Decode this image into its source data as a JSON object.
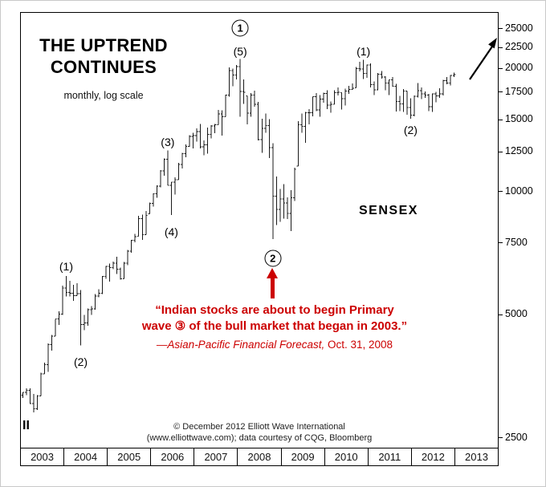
{
  "page": {
    "title_line1": "THE UPTREND",
    "title_line2": "CONTINUES",
    "subtitle": "monthly, log scale",
    "series_label": "SENSEX",
    "bottom_left_marker": "II",
    "quote_line1": "“Indian stocks are about to begin Primary",
    "quote_line2": "wave ③ of the bull market that began in 2003.”",
    "quote_attribution_italic": "—Asian-Pacific Financial Forecast,",
    "quote_attribution_rest": " Oct. 31, 2008",
    "copyright_line1": "© December 2012 Elliott Wave International",
    "copyright_line2": "(www.elliottwave.com); data courtesy of CQG, Bloomberg"
  },
  "chart_data": {
    "type": "ohlc_bar",
    "title": "THE UPTREND CONTINUES",
    "subtitle": "monthly, log scale",
    "series_name": "SENSEX",
    "scale": "log",
    "first_month": "2003-01",
    "x_years": [
      "2003",
      "2004",
      "2005",
      "2006",
      "2007",
      "2008",
      "2009",
      "2010",
      "2011",
      "2012",
      "2013"
    ],
    "y_ticks": [
      25000,
      22500,
      20000,
      17500,
      15000,
      12500,
      10000,
      7500,
      5000,
      2500
    ],
    "y_range": [
      2500,
      25000
    ],
    "colors": {
      "bar": "#1a1a1a",
      "annotation_red": "#cc0000"
    },
    "high": [
      3250,
      3320,
      3320,
      3220,
      3200,
      3630,
      3840,
      4280,
      4480,
      4900,
      5120,
      5920,
      6250,
      6080,
      5950,
      6000,
      5770,
      5020,
      5200,
      5280,
      5640,
      5800,
      6250,
      6620,
      6700,
      6780,
      6960,
      6550,
      6770,
      7230,
      7650,
      7920,
      8760,
      8820,
      9000,
      9440,
      9950,
      10400,
      11350,
      12100,
      12670,
      10600,
      10900,
      11800,
      12500,
      13100,
      13800,
      14000,
      14350,
      14700,
      13400,
      14400,
      14600,
      14700,
      15900,
      15870,
      17350,
      20200,
      20100,
      20500,
      21200,
      18900,
      17230,
      17480,
      17740,
      16630,
      15130,
      15580,
      15110,
      13200,
      10950,
      10190,
      10470,
      9725,
      10130,
      11490,
      14930,
      15600,
      15730,
      16000,
      17150,
      17490,
      17290,
      17530,
      17790,
      16670,
      17790,
      18050,
      17540,
      17920,
      18230,
      18470,
      20270,
      20850,
      21110,
      20550,
      20660,
      18700,
      19570,
      19810,
      19250,
      18870,
      19130,
      18440,
      17220,
      17910,
      17700,
      17000,
      17260,
      18520,
      18040,
      17660,
      17430,
      17450,
      17630,
      17970,
      18870,
      19140,
      19370,
      19610
    ],
    "low": [
      3150,
      3200,
      3040,
      2900,
      2940,
      3180,
      3600,
      3640,
      4110,
      4450,
      4750,
      5020,
      5570,
      5570,
      5430,
      5600,
      4230,
      4610,
      4720,
      5020,
      5170,
      5550,
      5640,
      6150,
      6050,
      6500,
      6320,
      6120,
      6150,
      6650,
      7130,
      7550,
      7820,
      7660,
      7890,
      8870,
      9240,
      9700,
      10300,
      11000,
      10400,
      8800,
      9880,
      10750,
      11450,
      12180,
      12940,
      12800,
      13300,
      12800,
      12320,
      12430,
      13550,
      13950,
      14640,
      13780,
      15320,
      17150,
      18180,
      18890,
      15330,
      16450,
      14680,
      15300,
      16200,
      13400,
      12500,
      14000,
      12150,
      7700,
      8320,
      8470,
      8630,
      8620,
      8050,
      9540,
      11600,
      14000,
      13220,
      14680,
      15360,
      15800,
      15330,
      16580,
      15980,
      15650,
      16440,
      17270,
      15960,
      16320,
      17400,
      17820,
      18030,
      19770,
      18950,
      19070,
      18040,
      17300,
      17790,
      18980,
      17790,
      17310,
      18130,
      15770,
      15800,
      15750,
      15480,
      15140,
      15360,
      17060,
      16920,
      17010,
      15810,
      15750,
      16600,
      17030,
      17250,
      18390,
      18260,
      19150
    ],
    "close": [
      3250,
      3283,
      3049,
      2960,
      3180,
      3607,
      3793,
      4244,
      4453,
      4907,
      5045,
      5839,
      5696,
      5668,
      5591,
      5655,
      4760,
      4795,
      5170,
      5192,
      5584,
      5672,
      6234,
      6603,
      6556,
      6714,
      6493,
      6154,
      6715,
      7194,
      7635,
      7805,
      8634,
      7892,
      8789,
      9398,
      9920,
      10370,
      11280,
      12043,
      10399,
      10609,
      10744,
      11699,
      12454,
      12962,
      13696,
      13787,
      14091,
      12938,
      13072,
      13872,
      14544,
      14651,
      15551,
      15319,
      17291,
      19838,
      19363,
      20287,
      17649,
      17579,
      15644,
      17287,
      16416,
      13462,
      14356,
      14565,
      12860,
      9788,
      9093,
      9647,
      9424,
      8892,
      9709,
      11403,
      14625,
      14494,
      15670,
      15667,
      17127,
      15896,
      16926,
      17465,
      16358,
      16430,
      17528,
      17559,
      16945,
      17701,
      17868,
      17971,
      20069,
      20032,
      19521,
      20509,
      18328,
      17823,
      19445,
      19136,
      18503,
      18846,
      18197,
      16677,
      16454,
      17705,
      16123,
      15455,
      17194,
      17753,
      17404,
      17319,
      16219,
      17430,
      17236,
      17430,
      18763,
      18505,
      19340,
      19427
    ],
    "wave_annotations": [
      {
        "label": "(1)",
        "month": 12,
        "price": 6600
      },
      {
        "label": "(2)",
        "month": 16,
        "price": 3850
      },
      {
        "label": "(3)",
        "month": 40,
        "price": 13300
      },
      {
        "label": "(4)",
        "month": 41,
        "price": 8000
      },
      {
        "label": "(5)",
        "month": 60,
        "price": 22100
      },
      {
        "label": "1",
        "month": 60,
        "price": 25200,
        "circled": true
      },
      {
        "label": "2",
        "month": 69,
        "price": 6900,
        "circled": true
      },
      {
        "label": "(1)",
        "month": 94,
        "price": 22100
      },
      {
        "label": "(2)",
        "month": 107,
        "price": 14200
      }
    ]
  }
}
